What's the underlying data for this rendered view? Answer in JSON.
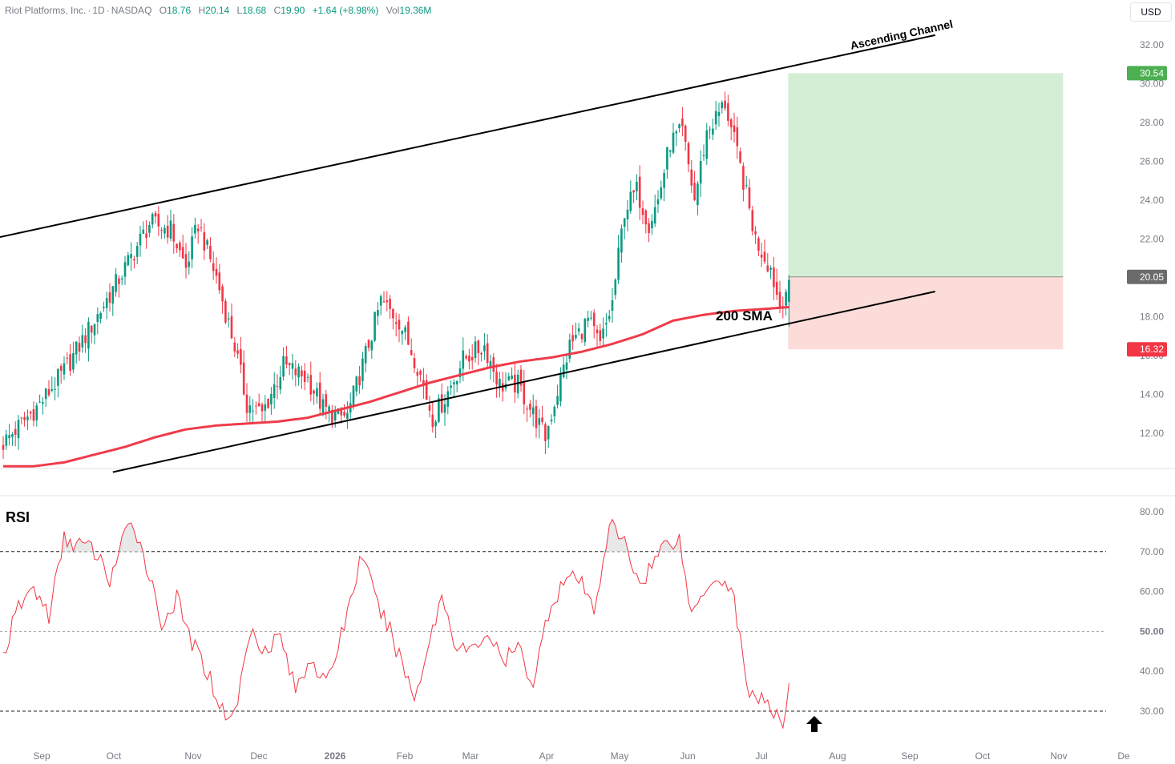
{
  "header": {
    "symbol": "Riot Platforms, Inc.",
    "interval": "1D",
    "exchange": "NASDAQ",
    "open_label": "O",
    "open": "18.76",
    "high_label": "H",
    "high": "20.14",
    "low_label": "L",
    "low": "18.68",
    "close_label": "C",
    "close": "19.90",
    "change": "+1.64 (+8.98%)",
    "vol_label": "Vol",
    "volume": "19.36M"
  },
  "currency": "USD",
  "rsi_title": "RSI",
  "colors": {
    "up": "#089981",
    "down": "#f23645",
    "sma": "#ef3b4a",
    "rsi": "#f23645",
    "target": "#4caf50",
    "stop": "#f23645",
    "target_zone": "#d3eed4",
    "stop_zone": "#fcdcd9"
  },
  "chart_data": [
    {
      "type": "candlestick",
      "ylim": [
        10.0,
        33.0
      ],
      "y_ticks": [
        "32.00",
        "30.00",
        "28.00",
        "26.00",
        "24.00",
        "22.00",
        "20.00",
        "18.00",
        "16.00",
        "14.00",
        "12.00"
      ],
      "x_ticks": [
        "Sep",
        "Oct",
        "Nov",
        "Dec",
        "2026",
        "Feb",
        "Mar",
        "Apr",
        "May",
        "Jun",
        "Jul",
        "Aug",
        "Sep",
        "Oct",
        "Nov",
        "De"
      ],
      "bold_x_tick": "2026",
      "close_anchors": [
        [
          0,
          11.5
        ],
        [
          12,
          13.5
        ],
        [
          20,
          15.2
        ],
        [
          30,
          17.8
        ],
        [
          40,
          20.5
        ],
        [
          48,
          22.8
        ],
        [
          55,
          22.5
        ],
        [
          60,
          20.5
        ],
        [
          64,
          22.8
        ],
        [
          70,
          20.0
        ],
        [
          76,
          16.5
        ],
        [
          80,
          13.5
        ],
        [
          85,
          13.0
        ],
        [
          92,
          15.5
        ],
        [
          100,
          14.8
        ],
        [
          105,
          13.3
        ],
        [
          110,
          12.8
        ],
        [
          113,
          12.9
        ],
        [
          118,
          15.5
        ],
        [
          124,
          18.8
        ],
        [
          130,
          17.8
        ],
        [
          136,
          15.5
        ],
        [
          141,
          12.8
        ],
        [
          145,
          13.8
        ],
        [
          151,
          15.8
        ],
        [
          158,
          16.5
        ],
        [
          163,
          14.5
        ],
        [
          169,
          14.5
        ],
        [
          174,
          13.0
        ],
        [
          178,
          11.8
        ],
        [
          182,
          14.2
        ],
        [
          186,
          16.5
        ],
        [
          192,
          17.8
        ],
        [
          196,
          16.5
        ],
        [
          200,
          18.7
        ],
        [
          204,
          23.5
        ],
        [
          208,
          24.5
        ],
        [
          212,
          22.8
        ],
        [
          215,
          24.0
        ],
        [
          219,
          27.0
        ],
        [
          223,
          27.5
        ],
        [
          227,
          24.0
        ],
        [
          231,
          27.5
        ],
        [
          235,
          28.5
        ],
        [
          237,
          29.0
        ],
        [
          240,
          27.0
        ],
        [
          243,
          25.0
        ],
        [
          247,
          22.0
        ],
        [
          252,
          20.5
        ],
        [
          255,
          18.5
        ],
        [
          258,
          19.9
        ]
      ],
      "sma_label": "200 SMA",
      "sma_anchors": [
        [
          0,
          10.3
        ],
        [
          10,
          10.3
        ],
        [
          20,
          10.5
        ],
        [
          30,
          10.9
        ],
        [
          40,
          11.3
        ],
        [
          50,
          11.8
        ],
        [
          60,
          12.2
        ],
        [
          70,
          12.4
        ],
        [
          80,
          12.5
        ],
        [
          90,
          12.6
        ],
        [
          100,
          12.8
        ],
        [
          110,
          13.2
        ],
        [
          120,
          13.6
        ],
        [
          130,
          14.1
        ],
        [
          140,
          14.6
        ],
        [
          150,
          15.0
        ],
        [
          160,
          15.4
        ],
        [
          170,
          15.7
        ],
        [
          180,
          15.9
        ],
        [
          190,
          16.2
        ],
        [
          200,
          16.6
        ],
        [
          210,
          17.1
        ],
        [
          220,
          17.8
        ],
        [
          230,
          18.1
        ],
        [
          240,
          18.3
        ],
        [
          250,
          18.4
        ],
        [
          258,
          18.5
        ]
      ],
      "ascending_channel": {
        "label": "Ascending Channel",
        "upper": {
          "from": [
            0,
            22.1
          ],
          "to": [
            306,
            32.5
          ]
        },
        "lower": {
          "from": [
            36,
            10.0
          ],
          "to": [
            306,
            19.3
          ]
        }
      },
      "position": {
        "target": "30.54",
        "entry": "20.05",
        "stop": "16.32",
        "from_bar": 258,
        "to_bar": 348
      },
      "bars_total": 360,
      "bar_width_days": 1
    },
    {
      "type": "line",
      "name": "RSI",
      "ylim": [
        24.0,
        82.0
      ],
      "y_ticks": [
        "80.00",
        "70.00",
        "60.00",
        "50.00",
        "40.00",
        "30.00"
      ],
      "levels": [
        70,
        50,
        30
      ],
      "rsi_anchors": [
        [
          0,
          44
        ],
        [
          5,
          56
        ],
        [
          10,
          61
        ],
        [
          15,
          54
        ],
        [
          20,
          73
        ],
        [
          25,
          72
        ],
        [
          30,
          70
        ],
        [
          35,
          63
        ],
        [
          40,
          74
        ],
        [
          43,
          77
        ],
        [
          47,
          67
        ],
        [
          52,
          52
        ],
        [
          57,
          58
        ],
        [
          62,
          47
        ],
        [
          67,
          40
        ],
        [
          72,
          30
        ],
        [
          76,
          29
        ],
        [
          81,
          50
        ],
        [
          86,
          46
        ],
        [
          91,
          49
        ],
        [
          96,
          35
        ],
        [
          101,
          44
        ],
        [
          106,
          36
        ],
        [
          112,
          52
        ],
        [
          118,
          70
        ],
        [
          122,
          58
        ],
        [
          127,
          50
        ],
        [
          132,
          40
        ],
        [
          135,
          33
        ],
        [
          139,
          45
        ],
        [
          144,
          59
        ],
        [
          149,
          46
        ],
        [
          154,
          45
        ],
        [
          159,
          50
        ],
        [
          164,
          42
        ],
        [
          169,
          46
        ],
        [
          174,
          37
        ],
        [
          179,
          55
        ],
        [
          184,
          63
        ],
        [
          189,
          63
        ],
        [
          194,
          55
        ],
        [
          199,
          77
        ],
        [
          204,
          72
        ],
        [
          209,
          62
        ],
        [
          214,
          68
        ],
        [
          218,
          73
        ],
        [
          222,
          73
        ],
        [
          226,
          54
        ],
        [
          231,
          62
        ],
        [
          235,
          64
        ],
        [
          240,
          59
        ],
        [
          244,
          36
        ],
        [
          249,
          33
        ],
        [
          254,
          28
        ],
        [
          256,
          27
        ],
        [
          258,
          37
        ]
      ]
    }
  ]
}
